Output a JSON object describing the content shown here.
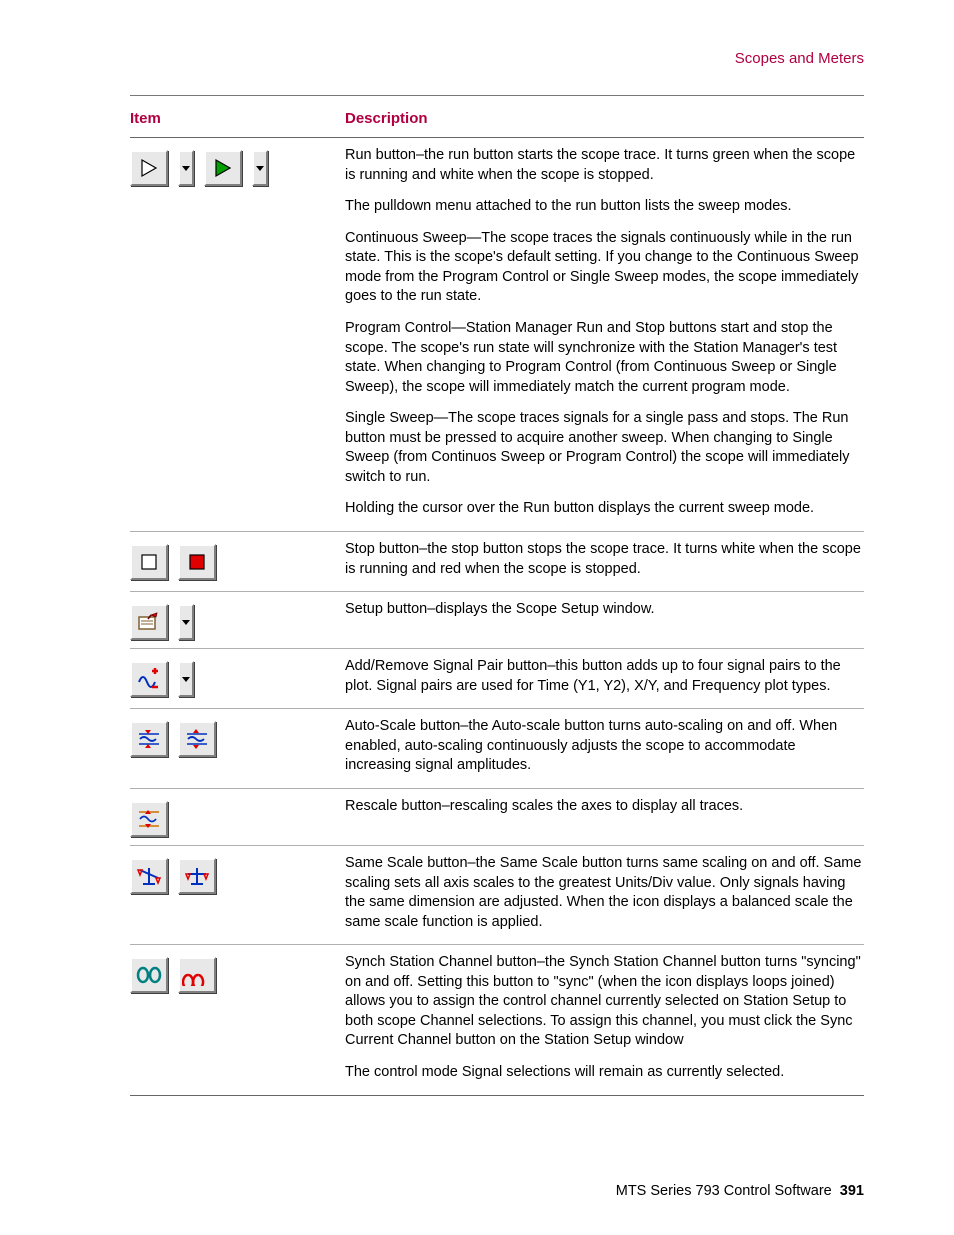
{
  "header_label": "Scopes and Meters",
  "columns": {
    "item": "Item",
    "description": "Description"
  },
  "rows": [
    {
      "icon": "run",
      "paragraphs": [
        "Run button–the run button starts the scope trace. It turns green when the scope is running and white when the scope is stopped.",
        "The pulldown menu attached to the run button lists the sweep modes.",
        "Continuous Sweep—The scope traces the signals continuously while in the run state. This is the scope's default setting. If you change to the Continuous Sweep mode from the Program Control or Single Sweep modes, the scope immediately goes to the run state.",
        "Program Control—Station Manager Run and Stop buttons start and stop the scope. The scope's run state will synchronize with the Station Manager's test state. When changing to Program Control (from Continuous Sweep or Single Sweep), the scope will immediately match the current program mode.",
        "Single Sweep—The scope traces signals for a single pass and stops. The Run button must be pressed to acquire another sweep. When changing to Single Sweep (from Continuos Sweep or Program Control) the scope will immediately switch to run.",
        "Holding the cursor over the Run button displays the current sweep mode."
      ]
    },
    {
      "icon": "stop",
      "paragraphs": [
        "Stop button–the stop button stops the scope trace. It turns white when the scope is running and red when the scope is stopped."
      ]
    },
    {
      "icon": "setup",
      "paragraphs": [
        "Setup button–displays the Scope Setup window."
      ]
    },
    {
      "icon": "addremove",
      "paragraphs": [
        "Add/Remove Signal Pair button–this button adds up to four signal pairs to the plot. Signal pairs are used for Time (Y1, Y2), X/Y, and Frequency plot types."
      ]
    },
    {
      "icon": "autoscale",
      "paragraphs": [
        "Auto-Scale button–the Auto-scale button turns auto-scaling on and off. When enabled, auto-scaling continuously adjusts the scope to accommodate increasing signal amplitudes."
      ]
    },
    {
      "icon": "rescale",
      "paragraphs": [
        "Rescale button–rescaling scales the axes to display all traces."
      ]
    },
    {
      "icon": "samescale",
      "paragraphs": [
        "Same Scale button–the Same Scale button turns same scaling on and off. Same scaling sets all axis scales to the greatest Units/Div value. Only signals having the same dimension are adjusted. When the icon displays a balanced scale the same scale function is applied."
      ]
    },
    {
      "icon": "synch",
      "paragraphs": [
        "Synch Station Channel button–the Synch Station Channel button turns \"syncing\" on and off. Setting this button to \"sync\" (when the icon displays loops joined) allows you to assign the control channel currently selected on Station Setup to both scope Channel selections. To assign this channel, you must click the Sync Current Channel button on the Station Setup window",
        "The control mode Signal selections will remain as currently selected."
      ]
    }
  ],
  "footer": {
    "product": "MTS Series 793 Control Software",
    "page": "391"
  },
  "colors": {
    "accent": "#b00040",
    "green": "#00a000",
    "red": "#e00000",
    "blue": "#0030c0",
    "orange": "#d07000",
    "teal": "#008080"
  }
}
